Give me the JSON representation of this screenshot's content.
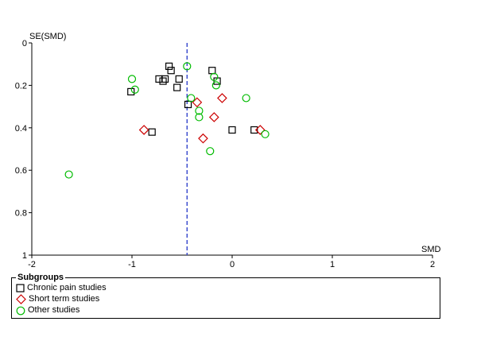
{
  "chart_data": {
    "type": "scatter",
    "subtype": "funnel plot",
    "xlabel": "SMD",
    "ylabel": "SE(SMD)",
    "xlim": [
      -2,
      2
    ],
    "ylim": [
      0,
      1
    ],
    "y_inverted": true,
    "x_ticks": [
      "-2",
      "-1",
      "0",
      "1",
      "2"
    ],
    "x_tick_values": [
      -2,
      -1,
      0,
      1,
      2
    ],
    "y_ticks": [
      "0",
      "0.2",
      "0.4",
      "0.6",
      "0.8",
      "1"
    ],
    "y_tick_values": [
      0,
      0.2,
      0.4,
      0.6,
      0.8,
      1
    ],
    "grid": false,
    "reference_line": {
      "x": -0.45,
      "style": "dashed",
      "color": "#3344cc"
    },
    "legend": {
      "title": "Subgroups",
      "placement": "bottom",
      "entries": [
        "Chronic pain studies",
        "Short term studies",
        "Other studies"
      ]
    },
    "series": [
      {
        "name": "Chronic pain studies",
        "marker": "square",
        "color": "#000000",
        "points": [
          [
            -0.63,
            0.11
          ],
          [
            -0.61,
            0.13
          ],
          [
            -0.73,
            0.17
          ],
          [
            -0.69,
            0.18
          ],
          [
            -0.67,
            0.17
          ],
          [
            -0.53,
            0.17
          ],
          [
            -1.01,
            0.23
          ],
          [
            -0.55,
            0.21
          ],
          [
            -0.44,
            0.29
          ],
          [
            -0.2,
            0.13
          ],
          [
            -0.15,
            0.18
          ],
          [
            -0.8,
            0.42
          ],
          [
            0.0,
            0.41
          ],
          [
            0.22,
            0.41
          ]
        ]
      },
      {
        "name": "Short term studies",
        "marker": "diamond",
        "color": "#cc0000",
        "points": [
          [
            -0.88,
            0.41
          ],
          [
            -0.35,
            0.28
          ],
          [
            -0.1,
            0.26
          ],
          [
            -0.18,
            0.35
          ],
          [
            -0.29,
            0.45
          ],
          [
            0.28,
            0.41
          ]
        ]
      },
      {
        "name": "Other studies",
        "marker": "circle",
        "color": "#00bb00",
        "points": [
          [
            -0.45,
            0.11
          ],
          [
            -1.0,
            0.17
          ],
          [
            -0.97,
            0.22
          ],
          [
            -0.41,
            0.26
          ],
          [
            -0.33,
            0.32
          ],
          [
            -0.33,
            0.35
          ],
          [
            -0.18,
            0.16
          ],
          [
            -0.16,
            0.2
          ],
          [
            0.14,
            0.26
          ],
          [
            -0.22,
            0.51
          ],
          [
            0.33,
            0.43
          ],
          [
            -1.63,
            0.62
          ]
        ]
      }
    ]
  }
}
